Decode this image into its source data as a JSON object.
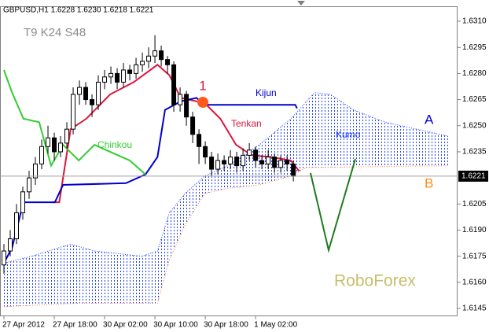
{
  "chart_data": {
    "type": "candlestick",
    "title": "GBPUSD,H1  1.6228 1.6230 1.6218 1.6221",
    "settings_label": "T9 K24 S48",
    "cloud_label": "Kumo",
    "marker_label": "1",
    "watermark": "RoboForex",
    "xlim": [
      -0.625,
      72.1
    ],
    "ylim": [
      1.61405,
      1.63186
    ],
    "xticks": [
      {
        "value": 0,
        "label": "27 Apr 2012"
      },
      {
        "value": 8,
        "label": "27 Apr 18:00"
      },
      {
        "value": 16,
        "label": "30 Apr 02:00"
      },
      {
        "value": 24,
        "label": "30 Apr 10:00"
      },
      {
        "value": 32,
        "label": "30 Apr 18:00"
      },
      {
        "value": 40,
        "label": "1 May 02:00"
      }
    ],
    "yticks": [
      {
        "value": 1.631,
        "label": "1.6310"
      },
      1.6295,
      {
        "value": 1.628,
        "label": "1.6280"
      },
      1.6265,
      {
        "value": 1.625,
        "label": "1.6250"
      },
      1.6235,
      1.6205,
      {
        "value": 1.619,
        "label": "1.6190"
      },
      1.6175,
      {
        "value": 1.616,
        "label": "1.6160"
      },
      1.6145
    ],
    "candles": [
      [
        1.617,
        1.6182,
        1.6165,
        1.6178
      ],
      [
        1.6178,
        1.619,
        1.6175,
        1.6185
      ],
      [
        1.6185,
        1.6205,
        1.6182,
        1.62
      ],
      [
        1.62,
        1.6215,
        1.6196,
        1.6212
      ],
      [
        1.6212,
        1.6224,
        1.6208,
        1.622
      ],
      [
        1.622,
        1.6232,
        1.6216,
        1.6228
      ],
      [
        1.6228,
        1.6242,
        1.6225,
        1.6238
      ],
      [
        1.6238,
        1.625,
        1.6234,
        1.6243
      ],
      [
        1.6243,
        1.6246,
        1.623,
        1.6235
      ],
      [
        1.6235,
        1.6244,
        1.6232,
        1.624
      ],
      [
        1.624,
        1.6252,
        1.6237,
        1.6248
      ],
      [
        1.6248,
        1.6272,
        1.6245,
        1.6268
      ],
      [
        1.6268,
        1.6276,
        1.6262,
        1.6272
      ],
      [
        1.6272,
        1.6275,
        1.6262,
        1.6265
      ],
      [
        1.6265,
        1.6268,
        1.6255,
        1.6262
      ],
      [
        1.6262,
        1.6279,
        1.6259,
        1.6275
      ],
      [
        1.6275,
        1.6282,
        1.6271,
        1.6278
      ],
      [
        1.6278,
        1.6284,
        1.6274,
        1.628
      ],
      [
        1.628,
        1.6283,
        1.6271,
        1.6275
      ],
      [
        1.6275,
        1.6286,
        1.6272,
        1.6282
      ],
      [
        1.6282,
        1.6285,
        1.6276,
        1.628
      ],
      [
        1.628,
        1.6289,
        1.6277,
        1.6285
      ],
      [
        1.6285,
        1.6292,
        1.6281,
        1.6287
      ],
      [
        1.6287,
        1.6295,
        1.6283,
        1.629
      ],
      [
        1.629,
        1.6302,
        1.6286,
        1.6293
      ],
      [
        1.6293,
        1.6296,
        1.6284,
        1.6288
      ],
      [
        1.6288,
        1.629,
        1.628,
        1.6285
      ],
      [
        1.6285,
        1.6287,
        1.6258,
        1.6262
      ],
      [
        1.6262,
        1.6272,
        1.6258,
        1.6268
      ],
      [
        1.6268,
        1.627,
        1.625,
        1.6255
      ],
      [
        1.6255,
        1.6258,
        1.624,
        1.6245
      ],
      [
        1.6245,
        1.6248,
        1.6228,
        1.6238
      ],
      [
        1.6238,
        1.6241,
        1.6228,
        1.6232
      ],
      [
        1.6232,
        1.6235,
        1.6221,
        1.6225
      ],
      [
        1.6225,
        1.6234,
        1.6222,
        1.623
      ],
      [
        1.623,
        1.6233,
        1.6224,
        1.6228
      ],
      [
        1.6228,
        1.6236,
        1.6225,
        1.6232
      ],
      [
        1.6232,
        1.6235,
        1.6223,
        1.6227
      ],
      [
        1.6227,
        1.6237,
        1.6224,
        1.6233
      ],
      [
        1.6233,
        1.624,
        1.623,
        1.6236
      ],
      [
        1.6236,
        1.6238,
        1.6226,
        1.623
      ],
      [
        1.623,
        1.6233,
        1.6225,
        1.6228
      ],
      [
        1.6228,
        1.6236,
        1.6225,
        1.6232
      ],
      [
        1.6232,
        1.6234,
        1.6223,
        1.6226
      ],
      [
        1.6226,
        1.6233,
        1.6223,
        1.623
      ],
      [
        1.623,
        1.6233,
        1.6224,
        1.6228
      ],
      [
        1.6228,
        1.623,
        1.6218,
        1.6221
      ]
    ],
    "series": [
      {
        "name": "Tenkan",
        "color": "#dc143c",
        "x": [
          7.5,
          8.8,
          10.6,
          13.1,
          16.9,
          20.6,
          24.4,
          26.3,
          28.1,
          31.9,
          34.4,
          36.9,
          39.4,
          42.5,
          45.6,
          46.9
        ],
        "values": [
          1.6206,
          1.6206,
          1.6248,
          1.6254,
          1.6268,
          1.6275,
          1.6285,
          1.6279,
          1.6266,
          1.6263,
          1.6254,
          1.6239,
          1.6233,
          1.6232,
          1.623,
          1.6224
        ]
      },
      {
        "name": "Kijun",
        "color": "#0000cd",
        "x": [
          0,
          1.3,
          3.1,
          8.1,
          9.4,
          19.4,
          22.5,
          24.4,
          25.6,
          28.1,
          30.6,
          31.9,
          46.3,
          46.6
        ],
        "values": [
          1.6171,
          1.618,
          1.6206,
          1.6206,
          1.6216,
          1.6217,
          1.6222,
          1.6232,
          1.6259,
          1.6264,
          1.6266,
          1.6262,
          1.6262,
          1.626
        ]
      },
      {
        "name": "Chinkou",
        "color": "#32cd32",
        "x": [
          0,
          1.3,
          3.1,
          5.6,
          7.5,
          9.4,
          11.9,
          14.4,
          17.5,
          20,
          22.5
        ],
        "values": [
          1.6282,
          1.6269,
          1.6254,
          1.6252,
          1.6227,
          1.6239,
          1.623,
          1.6239,
          1.6234,
          1.623,
          1.6222
        ]
      },
      {
        "name": "A",
        "color": "#1e3cff",
        "x": [
          0,
          4.4,
          10.6,
          14.4,
          21.9,
          24.4,
          26.3,
          28.8,
          31.9,
          35.6,
          40.6,
          45.6,
          49.4,
          51.9,
          55.6,
          60.6,
          65.6,
          70.6
        ],
        "values": [
          1.6171,
          1.6175,
          1.6182,
          1.6178,
          1.6175,
          1.6178,
          1.62,
          1.6211,
          1.6221,
          1.6227,
          1.6239,
          1.6254,
          1.6269,
          1.6268,
          1.6259,
          1.6252,
          1.6248,
          1.6244
        ]
      },
      {
        "name": "B",
        "color": "#ff7f27",
        "x": [
          0,
          11.9,
          24.4,
          26.3,
          28.8,
          31.9,
          35.6,
          40.6,
          45.6,
          48.1,
          70.6
        ],
        "values": [
          1.6146,
          1.6148,
          1.6148,
          1.6173,
          1.6193,
          1.6211,
          1.6214,
          1.6216,
          1.6221,
          1.6226,
          1.6227
        ]
      }
    ]
  }
}
